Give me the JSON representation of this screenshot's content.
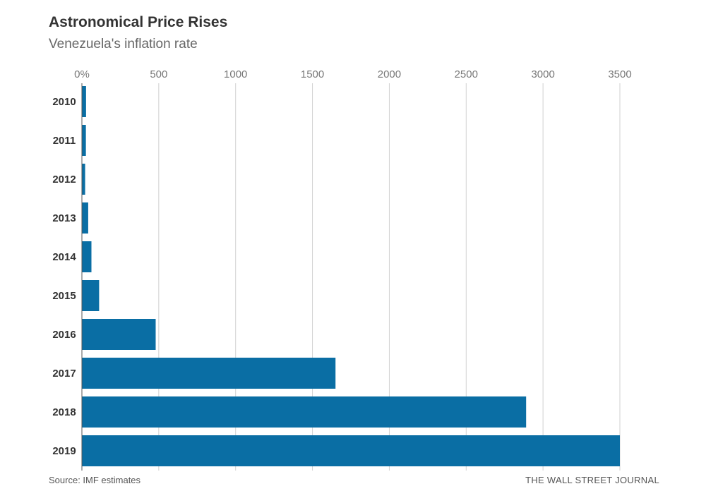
{
  "chart_data": {
    "type": "bar",
    "orientation": "horizontal",
    "title": "Astronomical Price Rises",
    "subtitle": "Venezuela's inflation rate",
    "categories": [
      "2010",
      "2011",
      "2012",
      "2013",
      "2014",
      "2015",
      "2016",
      "2017",
      "2018",
      "2019"
    ],
    "values": [
      27,
      26,
      21,
      41,
      62,
      112,
      480,
      1650,
      2890,
      3500
    ],
    "xlim": [
      0,
      3500
    ],
    "xticks": [
      0,
      500,
      1000,
      1500,
      2000,
      2500,
      3000,
      3500
    ],
    "xtick_labels": [
      "0%",
      "500",
      "1000",
      "1500",
      "2000",
      "2500",
      "3000",
      "3500"
    ],
    "grid": true,
    "bar_color": "#0a6ea4",
    "source": "Source: IMF estimates",
    "credit": "THE WALL STREET JOURNAL"
  }
}
